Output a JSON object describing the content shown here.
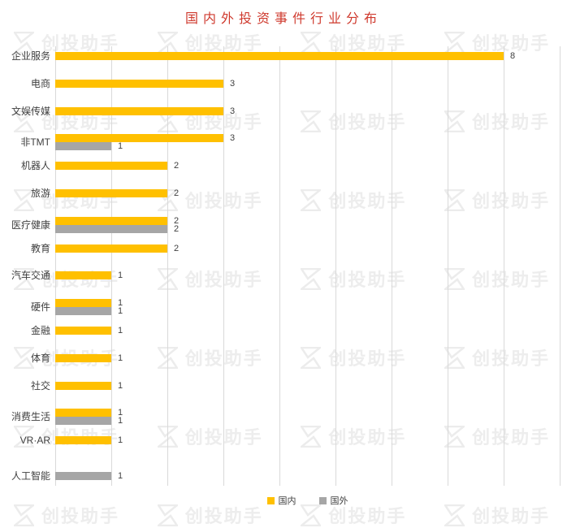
{
  "watermark": {
    "text": "创投助手",
    "logo": "z-bolt-icon",
    "color": "#ededed"
  },
  "chart_data": {
    "type": "bar",
    "orientation": "horizontal",
    "title": "国内外投资事件行业分布",
    "title_color": "#cf3a2e",
    "categories": [
      "企业服务",
      "电商",
      "文娱传媒",
      "非TMT",
      "机器人",
      "旅游",
      "医疗健康",
      "教育",
      "汽车交通",
      "硬件",
      "金融",
      "体育",
      "社交",
      "消费生活",
      "VR·AR",
      "人工智能"
    ],
    "series": [
      {
        "name": "国内",
        "color": "#FFC000",
        "values": [
          8,
          3,
          3,
          3,
          2,
          2,
          2,
          2,
          1,
          1,
          1,
          1,
          1,
          1,
          1,
          null
        ]
      },
      {
        "name": "国外",
        "color": "#A6A6A6",
        "values": [
          null,
          null,
          null,
          1,
          null,
          null,
          2,
          null,
          null,
          1,
          null,
          null,
          null,
          1,
          null,
          1
        ]
      }
    ],
    "xlim": [
      0,
      9
    ],
    "grid": true,
    "gridline_color": "#d9d9d9",
    "value_labels": true,
    "legend_position": "bottom"
  }
}
